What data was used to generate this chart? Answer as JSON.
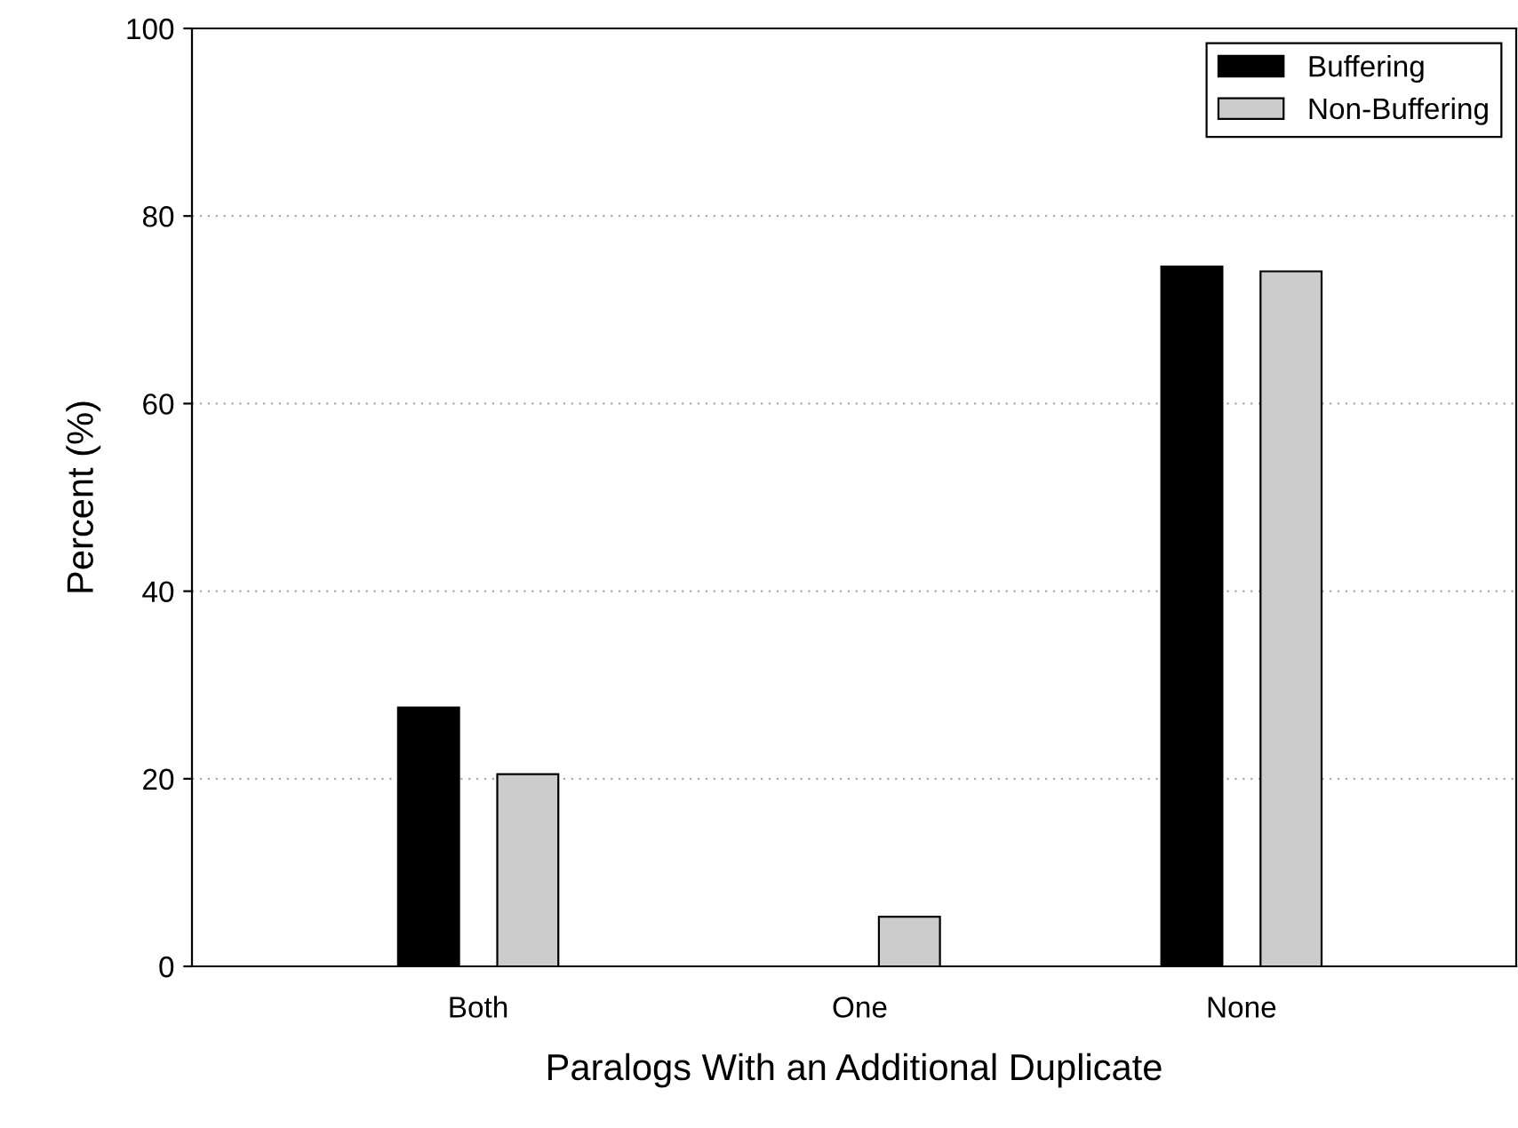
{
  "chart_data": {
    "type": "bar",
    "xlabel": "Paralogs With an Additional Duplicate",
    "ylabel": "Percent (%)",
    "categories": [
      "Both",
      "One",
      "None"
    ],
    "series": [
      {
        "name": "Buffering",
        "color": "#000000",
        "values": [
          27.6,
          0,
          74.6
        ]
      },
      {
        "name": "Non-Buffering",
        "color": "#cccccc",
        "values": [
          20.5,
          5.3,
          74.1
        ]
      }
    ],
    "ylim": [
      0,
      100
    ],
    "yticks": [
      0,
      20,
      40,
      60,
      80,
      100
    ],
    "grid": "y",
    "legend": "top right"
  }
}
